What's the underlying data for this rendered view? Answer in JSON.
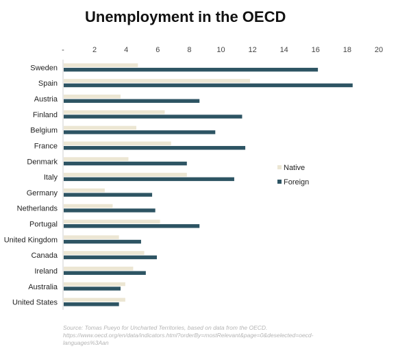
{
  "chart_data": {
    "type": "bar",
    "orientation": "horizontal",
    "title": "Unemployment in the OECD",
    "xlabel": "",
    "ylabel": "",
    "xlim": [
      0,
      20
    ],
    "x_tick_labels": [
      "-",
      "2",
      "4",
      "6",
      "8",
      "10",
      "12",
      "14",
      "16",
      "18",
      "20"
    ],
    "grid": false,
    "legend_position": "right",
    "categories": [
      "Sweden",
      "Spain",
      "Austria",
      "Finland",
      "Belgium",
      "France",
      "Denmark",
      "Italy",
      "Germany",
      "Netherlands",
      "Portugal",
      "United Kingdom",
      "Canada",
      "Ireland",
      "Australia",
      "United States"
    ],
    "series": [
      {
        "name": "Native",
        "color": "#ece6d3",
        "values": [
          4.7,
          11.8,
          3.6,
          6.4,
          4.6,
          6.8,
          4.1,
          7.8,
          2.6,
          3.1,
          6.1,
          3.5,
          5.1,
          4.4,
          3.9,
          3.9
        ]
      },
      {
        "name": "Foreign",
        "color": "#2d5463",
        "values": [
          16.1,
          18.3,
          8.6,
          11.3,
          9.6,
          11.5,
          7.8,
          10.8,
          5.6,
          5.8,
          8.6,
          4.9,
          5.9,
          5.2,
          3.6,
          3.5
        ]
      }
    ],
    "source_note": "Source: Tomas Pueyo for Uncharted Territories, based on data from the OECD. https://www.oecd.org/en/data/indicators.html?orderBy=mostRelevant&page=0&deselected=oecd-languages%3Aan"
  }
}
